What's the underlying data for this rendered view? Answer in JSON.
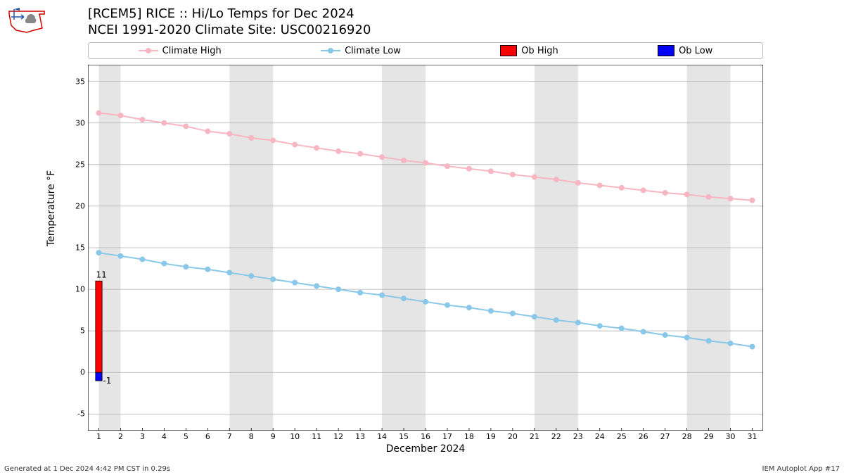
{
  "title": {
    "line1": "[RCEM5] RICE :: Hi/Lo Temps for Dec 2024",
    "line2": "NCEI 1991-2020 Climate Site: USC00216920"
  },
  "legend": {
    "climate_high": "Climate High",
    "climate_low": "Climate Low",
    "ob_high": "Ob High",
    "ob_low": "Ob Low"
  },
  "axes": {
    "ylabel": "Temperature °F",
    "xlabel": "December 2024",
    "ylim": [
      -7,
      37
    ],
    "yticks": [
      -5,
      0,
      5,
      10,
      15,
      20,
      25,
      30,
      35
    ],
    "xlim": [
      0.5,
      31.5
    ],
    "xticks": [
      1,
      2,
      3,
      4,
      5,
      6,
      7,
      8,
      9,
      10,
      11,
      12,
      13,
      14,
      15,
      16,
      17,
      18,
      19,
      20,
      21,
      22,
      23,
      24,
      25,
      26,
      27,
      28,
      29,
      30,
      31
    ]
  },
  "colors": {
    "climate_high": "#f7b6c2",
    "climate_low": "#89c8e8",
    "ob_high": "#ff0000",
    "ob_low": "#0000ff",
    "grid": "#b0b0b0",
    "weekend_band": "#e5e5e5",
    "plot_bg": "#ffffff",
    "border": "#000000"
  },
  "weekend_bands": [
    [
      1,
      2
    ],
    [
      7,
      9
    ],
    [
      14,
      16
    ],
    [
      21,
      23
    ],
    [
      28,
      30
    ]
  ],
  "series": {
    "days": [
      1,
      2,
      3,
      4,
      5,
      6,
      7,
      8,
      9,
      10,
      11,
      12,
      13,
      14,
      15,
      16,
      17,
      18,
      19,
      20,
      21,
      22,
      23,
      24,
      25,
      26,
      27,
      28,
      29,
      30,
      31
    ],
    "climate_high": [
      31.2,
      30.9,
      30.4,
      30.0,
      29.6,
      29.0,
      28.7,
      28.2,
      27.9,
      27.4,
      27.0,
      26.6,
      26.3,
      25.9,
      25.5,
      25.2,
      24.8,
      24.5,
      24.2,
      23.8,
      23.5,
      23.2,
      22.8,
      22.5,
      22.2,
      21.9,
      21.6,
      21.4,
      21.1,
      20.9,
      20.7
    ],
    "climate_low": [
      14.4,
      14.0,
      13.6,
      13.1,
      12.7,
      12.4,
      12.0,
      11.6,
      11.2,
      10.8,
      10.4,
      10.0,
      9.6,
      9.3,
      8.9,
      8.5,
      8.1,
      7.8,
      7.4,
      7.1,
      6.7,
      6.3,
      6.0,
      5.6,
      5.3,
      4.9,
      4.5,
      4.2,
      3.8,
      3.5,
      3.1
    ]
  },
  "observations": {
    "day": 1,
    "ob_high": 11,
    "ob_low": -1,
    "high_label": "11",
    "low_label": "-1"
  },
  "styling": {
    "line_width": 2,
    "marker_radius": 4,
    "bar_width": 0.3,
    "title_fontsize": 18,
    "label_fontsize": 14,
    "tick_fontsize": 11
  },
  "footer": {
    "left": "Generated at 1 Dec 2024 4:42 PM CST in 0.29s",
    "right": "IEM Autoplot App #17"
  }
}
